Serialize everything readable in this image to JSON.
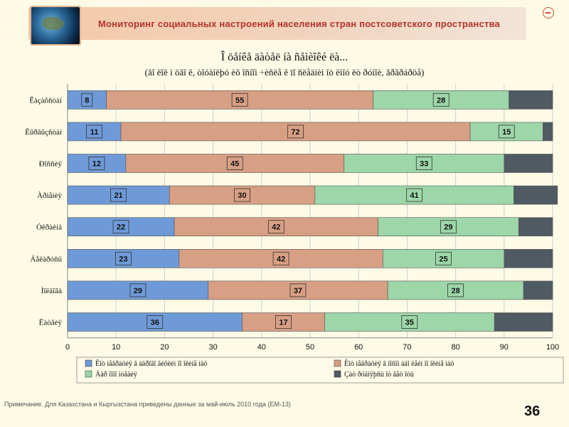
{
  "header": {
    "title": "Мониторинг социальных настроений населения стран постсоветского пространства"
  },
  "chart_data": {
    "type": "bar",
    "orientation": "horizontal",
    "stacked": true,
    "title": "Î öåíêå äàòåë íà ñåìèîêé ëà...",
    "subtitle": "(âî ëîê ì öãî ê, òîóàíëþó èõ îñíîì ÷èñëå ê ïî ñëåäíèì îò ëìîó ëò ðóíîè, ãðãðáðöå)",
    "categories": [
      "Êàçàõñòàí",
      "Êûðãûçñòàí",
      "Ðîññèÿ",
      "Àðìåíèÿ",
      "Óêðàèíà",
      "Áåëàðóñü",
      "Ìîëäîâà",
      "Ëàòâèÿ"
    ],
    "series": [
      {
        "name": "Êîò ìåãðàöèÿ â àäðîãî ãéôëèì ïî îêèíå ìàö",
        "color": "#6f9ad8",
        "values": [
          8,
          11,
          12,
          21,
          22,
          23,
          29,
          36
        ]
      },
      {
        "name": "Êîò ìåãðàöèÿ â ïîñîì àäî ëåéì ïî îêèíå ìàö",
        "color": "#d79f84",
        "values": [
          55,
          72,
          45,
          30,
          42,
          42,
          37,
          17
        ]
      },
      {
        "name": "Áàð îîïî ìòåäèÿ",
        "color": "#9dd6a8",
        "values": [
          28,
          15,
          33,
          41,
          29,
          25,
          28,
          35
        ]
      },
      {
        "name": "Çàò ðóäíÿþñü îò âåò îòü",
        "color": "#505a63",
        "values": [
          9,
          2,
          10,
          9,
          7,
          10,
          6,
          12
        ]
      }
    ],
    "xlim": [
      0,
      100
    ],
    "xticks": [
      0,
      10,
      20,
      30,
      40,
      50,
      60,
      70,
      80,
      90,
      100
    ],
    "grid": true,
    "legend_position": "bottom"
  },
  "footer": {
    "note": "Примечание. Для Казахстана и Кыргызстана приведены данные за май-июль 2010 года (ЕМ-13)",
    "page_number": "36"
  }
}
